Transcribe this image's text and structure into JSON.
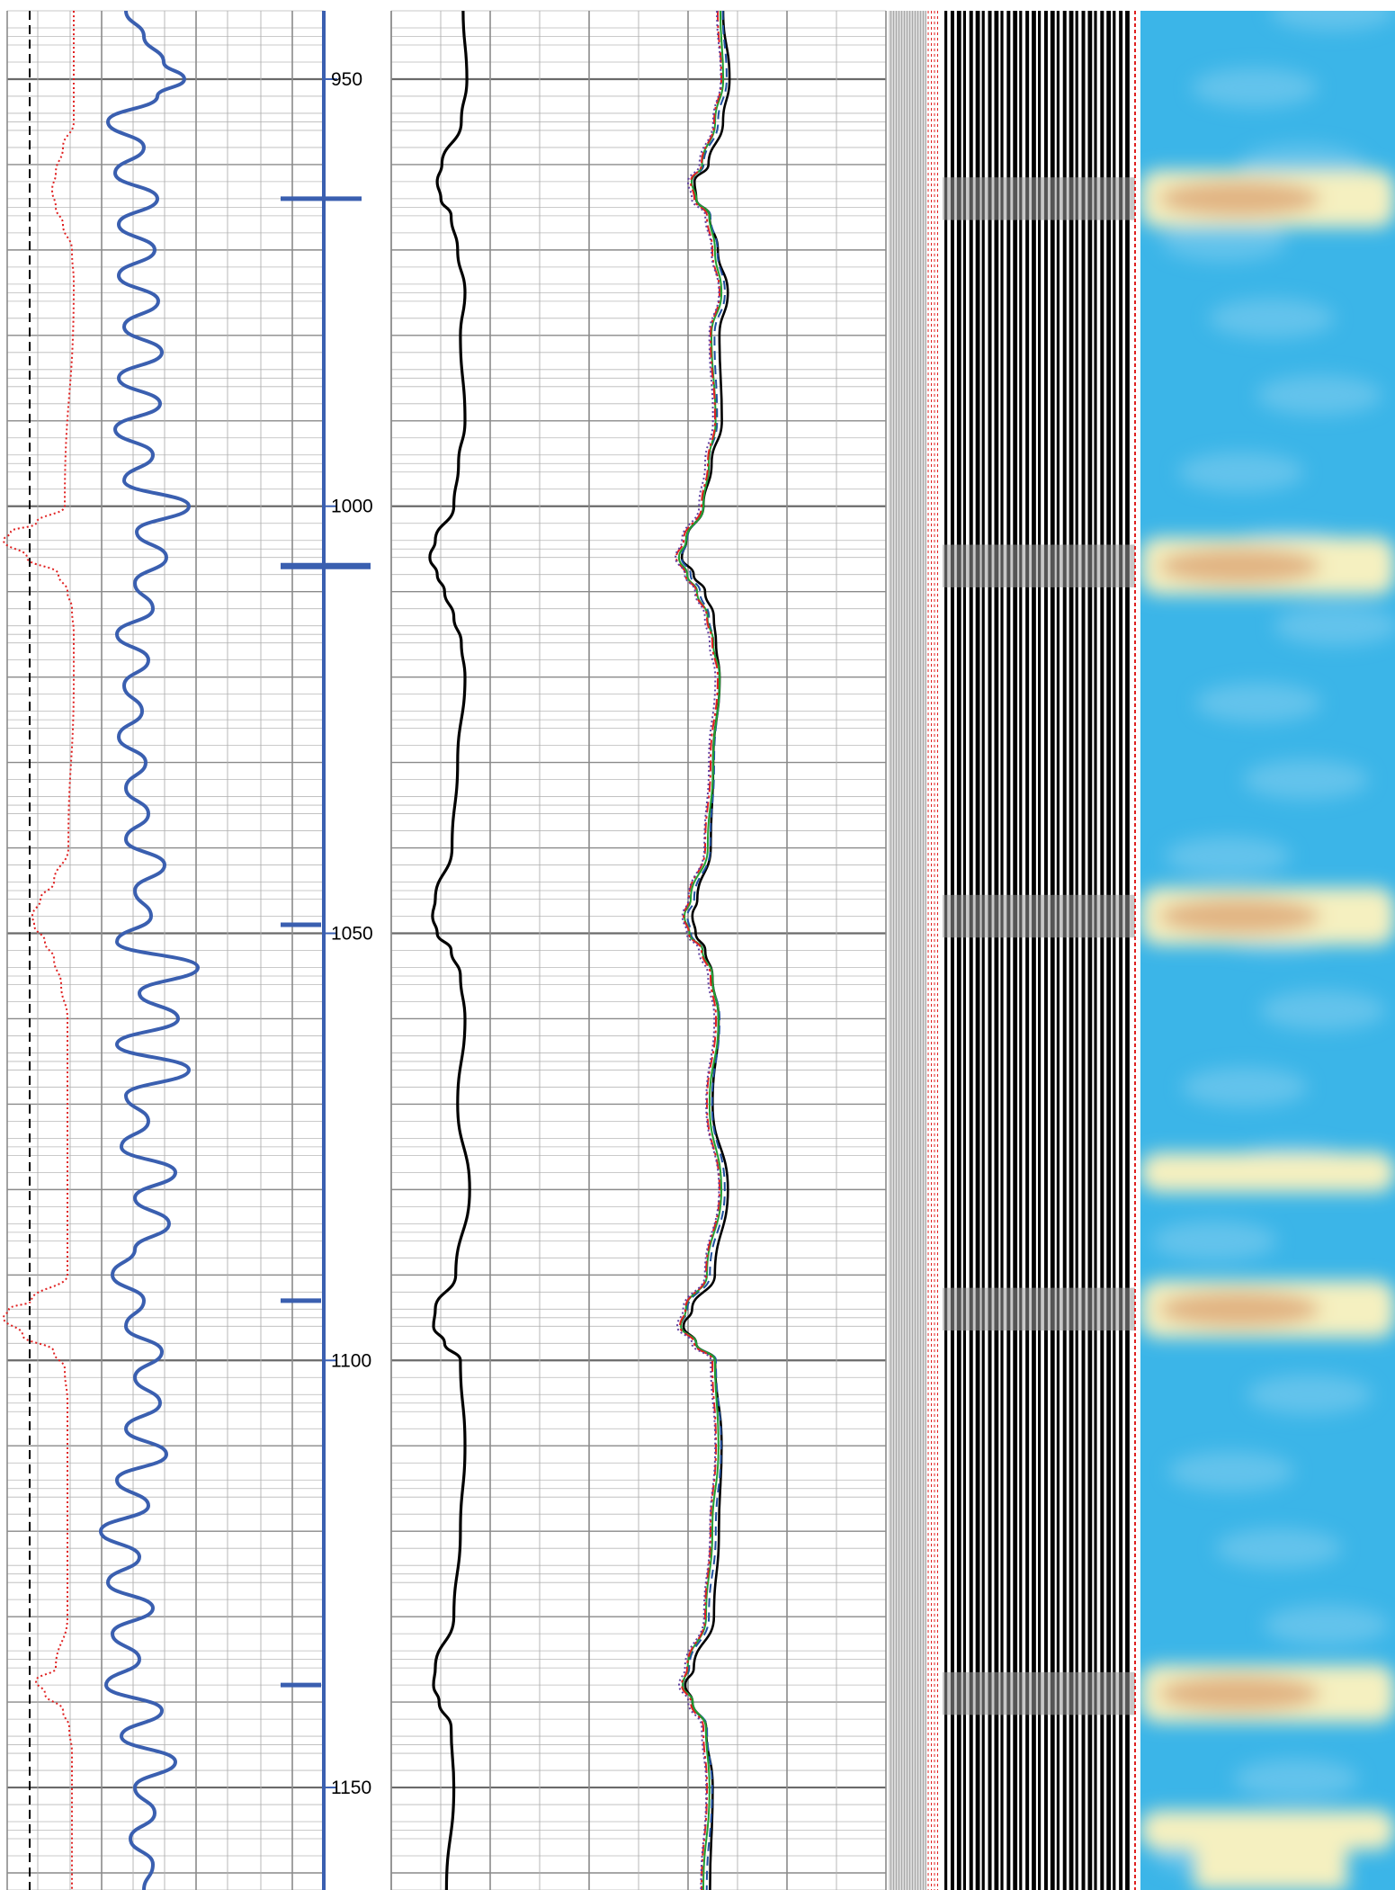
{
  "chart_data": {
    "type": "line",
    "title": "",
    "depth_axis": {
      "range": [
        942,
        1162
      ],
      "tick_labels": [
        "950",
        "1000",
        "1050",
        "1100",
        "1150"
      ],
      "tick_values": [
        950,
        1000,
        1050,
        1100,
        1150
      ]
    },
    "tracks": [
      {
        "name": "track-1",
        "series": [
          {
            "color": "#e02020",
            "style": "dotted",
            "depth": [
              942,
              955,
              958,
              961,
              963,
              965,
              967,
              970,
              974,
              1000,
              1002,
              1003,
              1004,
              1006,
              1008,
              1010,
              1012,
              1015,
              1020,
              1040,
              1044,
              1046,
              1048,
              1049,
              1051,
              1053,
              1056,
              1060,
              1090,
              1093,
              1094,
              1095,
              1097,
              1099,
              1101,
              1105,
              1130,
              1136,
              1137.5,
              1139,
              1141,
              1143,
              1146,
              1162
            ],
            "value": [
              82,
              82,
              70,
              62,
              58,
              62,
              70,
              80,
              82,
              72,
              40,
              12,
              4,
              30,
              65,
              75,
              80,
              82,
              82,
              76,
              60,
              45,
              36,
              38,
              50,
              60,
              68,
              75,
              75,
              35,
              10,
              4,
              25,
              60,
              72,
              75,
              75,
              62,
              40,
              50,
              70,
              77,
              80,
              80
            ]
          },
          {
            "color": "#3a5fb0",
            "style": "solid",
            "depth": [
              942,
              945,
              948,
              950,
              952,
              955,
              958,
              961,
              964,
              967,
              970,
              973,
              976,
              979,
              982,
              985,
              988,
              991,
              994,
              997,
              1000,
              1003,
              1006,
              1009,
              1012,
              1015,
              1018,
              1021,
              1024,
              1027,
              1030,
              1033,
              1036,
              1039,
              1042,
              1045,
              1048,
              1051,
              1054,
              1057,
              1060,
              1063,
              1066,
              1069,
              1072,
              1075,
              1078,
              1081,
              1084,
              1087,
              1090,
              1093,
              1096,
              1099,
              1102,
              1105,
              1108,
              1111,
              1114,
              1117,
              1120,
              1123,
              1126,
              1129,
              1132,
              1135,
              1138,
              1141,
              1144,
              1147,
              1150,
              1153,
              1156,
              1159,
              1162
            ],
            "value": [
              140,
              160,
              182,
              205,
              175,
              120,
              160,
              128,
              175,
              132,
              172,
              132,
              176,
              138,
              180,
              132,
              178,
              128,
              170,
              138,
              210,
              152,
              185,
              150,
              170,
              130,
              165,
              138,
              158,
              132,
              162,
              140,
              165,
              140,
              183,
              150,
              168,
              130,
              220,
              155,
              198,
              130,
              210,
              140,
              165,
              135,
              195,
              150,
              188,
              150,
              125,
              160,
              140,
              180,
              150,
              178,
              140,
              185,
              130,
              165,
              112,
              155,
              120,
              170,
              125,
              155,
              118,
              180,
              135,
              195,
              150,
              172,
              145,
              170,
              160
            ]
          },
          {
            "color": "#000000",
            "style": "dashed",
            "depth": [
              942,
              1162
            ],
            "value": [
              33,
              33
            ]
          }
        ]
      },
      {
        "name": "track-2",
        "series": [
          {
            "color": "#000000",
            "style": "solid",
            "depth": [
              942,
              950,
              955,
              960,
              962,
              964,
              966,
              970,
              975,
              980,
              990,
              995,
              1000,
              1004,
              1006,
              1008,
              1010,
              1013,
              1016,
              1020,
              1030,
              1040,
              1046,
              1048,
              1050,
              1052,
              1055,
              1060,
              1070,
              1080,
              1090,
              1094,
              1096,
              1098,
              1100,
              1110,
              1120,
              1130,
              1136,
              1138,
              1140,
              1143,
              1150,
              1162
            ],
            "value": [
              398,
              402,
              396,
              375,
              370,
              374,
              385,
              392,
              400,
              395,
              400,
              393,
              388,
              368,
              362,
              370,
              378,
              388,
              396,
              400,
              392,
              386,
              368,
              365,
              370,
              385,
              395,
              400,
              392,
              405,
              390,
              368,
              366,
              378,
              395,
              400,
              395,
              388,
              368,
              366,
              372,
              385,
              388,
              380
            ]
          }
        ]
      },
      {
        "name": "track-3",
        "series": [
          {
            "color": "#000000",
            "style": "solid",
            "offset": 10
          },
          {
            "color": "#2050a0",
            "style": "dashed",
            "offset": 6
          },
          {
            "color": "#20a030",
            "style": "solid",
            "offset": 3
          },
          {
            "color": "#e02020",
            "style": "dashdot",
            "offset": 0
          },
          {
            "color": "#6040a0",
            "style": "dotted",
            "offset": -3
          }
        ],
        "base_curve": {
          "depth": [
            942,
            950,
            955,
            960,
            962,
            964,
            966,
            970,
            975,
            980,
            990,
            995,
            1000,
            1004,
            1006,
            1008,
            1010,
            1013,
            1016,
            1020,
            1030,
            1040,
            1046,
            1048,
            1050,
            1052,
            1055,
            1060,
            1070,
            1080,
            1090,
            1094,
            1096,
            1098,
            1100,
            1110,
            1120,
            1130,
            1136,
            1138,
            1140,
            1143,
            1150,
            1162
          ],
          "value": [
            618,
            622,
            614,
            600,
            588,
            592,
            606,
            612,
            620,
            610,
            615,
            607,
            600,
            580,
            572,
            582,
            594,
            606,
            612,
            618,
            610,
            604,
            586,
            580,
            586,
            600,
            610,
            616,
            606,
            620,
            605,
            582,
            576,
            592,
            612,
            616,
            610,
            604,
            584,
            578,
            588,
            602,
            606,
            600
          ]
        }
      }
    ],
    "image_tracks": [
      {
        "name": "seismic-trace-panel",
        "colors": [
          "#000000",
          "#ffffff",
          "#e02020"
        ]
      },
      {
        "name": "heatmap-panel",
        "colors": [
          "#3bb5e8",
          "#f5f0c0",
          "#d99a6a"
        ],
        "warm_bands_depth": [
          964,
          1007,
          1048,
          1078,
          1094,
          1139,
          1155
        ]
      }
    ]
  }
}
